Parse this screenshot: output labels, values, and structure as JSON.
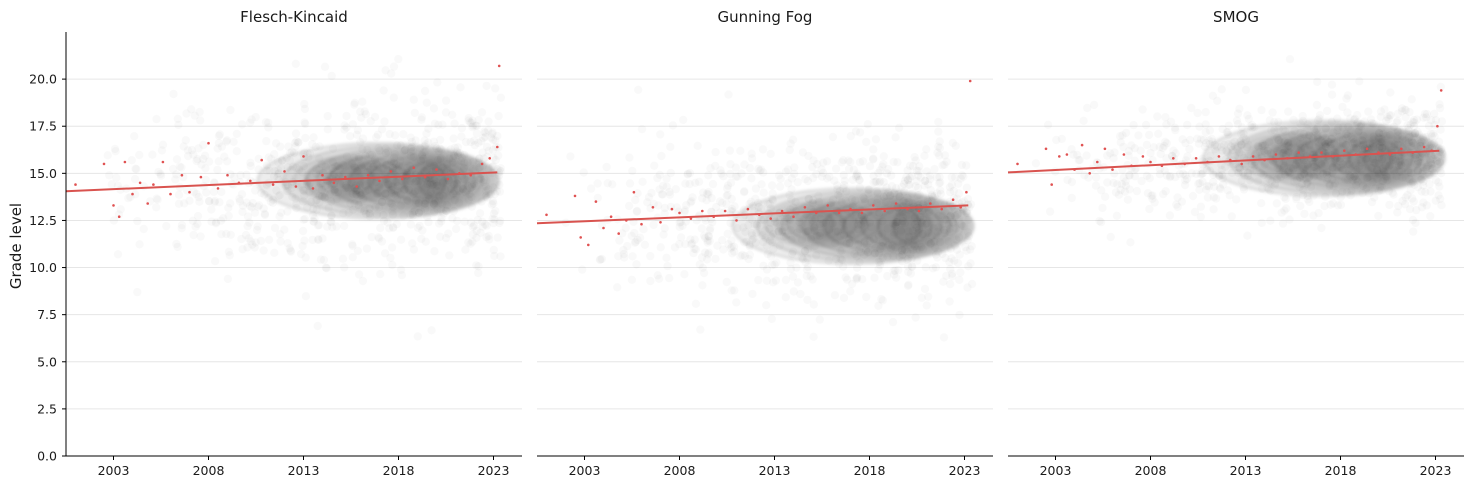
{
  "figure": {
    "ylabel": "Grade level"
  },
  "chart_data": [
    {
      "type": "scatter",
      "title": "Flesch-Kincaid",
      "xlabel": "",
      "ylabel": "Grade level",
      "xlim": [
        2000.5,
        2024.5
      ],
      "ylim": [
        0,
        22.5
      ],
      "xticks": [
        "2003",
        "2008",
        "2013",
        "2018",
        "2023"
      ],
      "yticks": [
        "0.0",
        "2.5",
        "5.0",
        "7.5",
        "10.0",
        "12.5",
        "15.0",
        "17.5",
        "20.0"
      ],
      "grid": "horizontal",
      "trend": {
        "x": [
          2000.5,
          2023.2
        ],
        "y": [
          14.05,
          15.05
        ]
      },
      "density_center": {
        "x": 2019.8,
        "y": 14.6
      },
      "monthly_means": [
        {
          "x": 2001.0,
          "y": 14.4
        },
        {
          "x": 2002.5,
          "y": 15.5
        },
        {
          "x": 2003.0,
          "y": 13.3
        },
        {
          "x": 2003.3,
          "y": 12.7
        },
        {
          "x": 2003.6,
          "y": 15.6
        },
        {
          "x": 2004.0,
          "y": 13.9
        },
        {
          "x": 2004.4,
          "y": 14.5
        },
        {
          "x": 2004.8,
          "y": 13.4
        },
        {
          "x": 2005.1,
          "y": 14.4
        },
        {
          "x": 2005.6,
          "y": 15.6
        },
        {
          "x": 2006.0,
          "y": 13.9
        },
        {
          "x": 2006.6,
          "y": 14.9
        },
        {
          "x": 2007.0,
          "y": 14.0
        },
        {
          "x": 2007.6,
          "y": 14.8
        },
        {
          "x": 2008.0,
          "y": 16.6
        },
        {
          "x": 2008.5,
          "y": 14.2
        },
        {
          "x": 2009.0,
          "y": 14.9
        },
        {
          "x": 2009.6,
          "y": 14.5
        },
        {
          "x": 2010.2,
          "y": 14.6
        },
        {
          "x": 2010.8,
          "y": 15.7
        },
        {
          "x": 2011.4,
          "y": 14.4
        },
        {
          "x": 2012.0,
          "y": 15.1
        },
        {
          "x": 2012.6,
          "y": 14.3
        },
        {
          "x": 2013.0,
          "y": 15.9
        },
        {
          "x": 2013.5,
          "y": 14.2
        },
        {
          "x": 2014.0,
          "y": 14.9
        },
        {
          "x": 2014.6,
          "y": 14.5
        },
        {
          "x": 2015.2,
          "y": 14.8
        },
        {
          "x": 2015.8,
          "y": 14.3
        },
        {
          "x": 2016.4,
          "y": 14.9
        },
        {
          "x": 2017.0,
          "y": 14.6
        },
        {
          "x": 2017.6,
          "y": 15.1
        },
        {
          "x": 2018.2,
          "y": 14.7
        },
        {
          "x": 2018.8,
          "y": 15.3
        },
        {
          "x": 2019.4,
          "y": 14.8
        },
        {
          "x": 2020.0,
          "y": 15.2
        },
        {
          "x": 2020.6,
          "y": 14.7
        },
        {
          "x": 2021.2,
          "y": 15.0
        },
        {
          "x": 2021.8,
          "y": 14.9
        },
        {
          "x": 2022.4,
          "y": 15.5
        },
        {
          "x": 2022.8,
          "y": 15.8
        },
        {
          "x": 2023.2,
          "y": 16.4
        },
        {
          "x": 2023.3,
          "y": 20.7
        }
      ]
    },
    {
      "type": "scatter",
      "title": "Gunning Fog",
      "xlabel": "",
      "ylabel": "",
      "xlim": [
        2000.5,
        2024.5
      ],
      "ylim": [
        0,
        22.5
      ],
      "xticks": [
        "2003",
        "2008",
        "2013",
        "2018",
        "2023"
      ],
      "yticks": [
        "0.0",
        "2.5",
        "5.0",
        "7.5",
        "10.0",
        "12.5",
        "15.0",
        "17.5",
        "20.0"
      ],
      "grid": "horizontal",
      "trend": {
        "x": [
          2000.5,
          2023.2
        ],
        "y": [
          12.35,
          13.3
        ]
      },
      "density_center": {
        "x": 2020.0,
        "y": 12.2
      },
      "monthly_means": [
        {
          "x": 2001.0,
          "y": 12.8
        },
        {
          "x": 2002.5,
          "y": 13.8
        },
        {
          "x": 2002.8,
          "y": 11.6
        },
        {
          "x": 2003.2,
          "y": 11.2
        },
        {
          "x": 2003.6,
          "y": 13.5
        },
        {
          "x": 2004.0,
          "y": 12.1
        },
        {
          "x": 2004.4,
          "y": 12.7
        },
        {
          "x": 2004.8,
          "y": 11.8
        },
        {
          "x": 2005.2,
          "y": 12.5
        },
        {
          "x": 2005.6,
          "y": 14.0
        },
        {
          "x": 2006.0,
          "y": 12.3
        },
        {
          "x": 2006.6,
          "y": 13.2
        },
        {
          "x": 2007.0,
          "y": 12.4
        },
        {
          "x": 2007.6,
          "y": 13.1
        },
        {
          "x": 2008.0,
          "y": 12.9
        },
        {
          "x": 2008.6,
          "y": 12.6
        },
        {
          "x": 2009.2,
          "y": 13.0
        },
        {
          "x": 2009.8,
          "y": 12.7
        },
        {
          "x": 2010.4,
          "y": 13.0
        },
        {
          "x": 2011.0,
          "y": 12.5
        },
        {
          "x": 2011.6,
          "y": 13.1
        },
        {
          "x": 2012.2,
          "y": 12.8
        },
        {
          "x": 2012.8,
          "y": 12.6
        },
        {
          "x": 2013.4,
          "y": 13.0
        },
        {
          "x": 2014.0,
          "y": 12.7
        },
        {
          "x": 2014.6,
          "y": 13.2
        },
        {
          "x": 2015.2,
          "y": 12.9
        },
        {
          "x": 2015.8,
          "y": 13.3
        },
        {
          "x": 2016.4,
          "y": 12.9
        },
        {
          "x": 2017.0,
          "y": 13.1
        },
        {
          "x": 2017.6,
          "y": 12.9
        },
        {
          "x": 2018.2,
          "y": 13.3
        },
        {
          "x": 2018.8,
          "y": 13.0
        },
        {
          "x": 2019.4,
          "y": 13.4
        },
        {
          "x": 2020.0,
          "y": 13.1
        },
        {
          "x": 2020.6,
          "y": 13.0
        },
        {
          "x": 2021.2,
          "y": 13.4
        },
        {
          "x": 2021.8,
          "y": 13.1
        },
        {
          "x": 2022.4,
          "y": 13.6
        },
        {
          "x": 2022.8,
          "y": 13.2
        },
        {
          "x": 2023.1,
          "y": 14.0
        },
        {
          "x": 2023.3,
          "y": 19.9
        }
      ]
    },
    {
      "type": "scatter",
      "title": "SMOG",
      "xlabel": "",
      "ylabel": "",
      "xlim": [
        2000.5,
        2024.5
      ],
      "ylim": [
        0,
        22.5
      ],
      "xticks": [
        "2003",
        "2008",
        "2013",
        "2018",
        "2023"
      ],
      "yticks": [
        "0.0",
        "2.5",
        "5.0",
        "7.5",
        "10.0",
        "12.5",
        "15.0",
        "17.5",
        "20.0"
      ],
      "grid": "horizontal",
      "trend": {
        "x": [
          2000.5,
          2023.2
        ],
        "y": [
          15.05,
          16.2
        ]
      },
      "density_center": {
        "x": 2020.0,
        "y": 15.8
      },
      "monthly_means": [
        {
          "x": 2001.0,
          "y": 15.5
        },
        {
          "x": 2002.5,
          "y": 16.3
        },
        {
          "x": 2002.8,
          "y": 14.4
        },
        {
          "x": 2003.2,
          "y": 15.9
        },
        {
          "x": 2003.6,
          "y": 16.0
        },
        {
          "x": 2004.0,
          "y": 15.2
        },
        {
          "x": 2004.4,
          "y": 16.5
        },
        {
          "x": 2004.8,
          "y": 15.0
        },
        {
          "x": 2005.2,
          "y": 15.6
        },
        {
          "x": 2005.6,
          "y": 16.3
        },
        {
          "x": 2006.0,
          "y": 15.2
        },
        {
          "x": 2006.6,
          "y": 16.0
        },
        {
          "x": 2007.0,
          "y": 15.4
        },
        {
          "x": 2007.6,
          "y": 15.9
        },
        {
          "x": 2008.0,
          "y": 15.6
        },
        {
          "x": 2008.6,
          "y": 15.4
        },
        {
          "x": 2009.2,
          "y": 15.8
        },
        {
          "x": 2009.8,
          "y": 15.5
        },
        {
          "x": 2010.4,
          "y": 15.8
        },
        {
          "x": 2011.0,
          "y": 15.6
        },
        {
          "x": 2011.6,
          "y": 15.9
        },
        {
          "x": 2012.2,
          "y": 15.7
        },
        {
          "x": 2012.8,
          "y": 15.5
        },
        {
          "x": 2013.4,
          "y": 15.9
        },
        {
          "x": 2014.0,
          "y": 15.7
        },
        {
          "x": 2014.6,
          "y": 16.0
        },
        {
          "x": 2015.2,
          "y": 15.8
        },
        {
          "x": 2015.8,
          "y": 16.1
        },
        {
          "x": 2016.4,
          "y": 15.9
        },
        {
          "x": 2017.0,
          "y": 16.1
        },
        {
          "x": 2017.6,
          "y": 15.9
        },
        {
          "x": 2018.2,
          "y": 16.2
        },
        {
          "x": 2018.8,
          "y": 16.0
        },
        {
          "x": 2019.4,
          "y": 16.3
        },
        {
          "x": 2020.0,
          "y": 16.1
        },
        {
          "x": 2020.6,
          "y": 16.0
        },
        {
          "x": 2021.2,
          "y": 16.3
        },
        {
          "x": 2021.8,
          "y": 16.1
        },
        {
          "x": 2022.4,
          "y": 16.4
        },
        {
          "x": 2022.8,
          "y": 16.2
        },
        {
          "x": 2023.1,
          "y": 17.5
        },
        {
          "x": 2023.3,
          "y": 19.4
        }
      ]
    }
  ],
  "colors": {
    "mean_points": "#e05252",
    "trend_line": "#d9534f",
    "density": "#000000",
    "grid": "#e6e6e6",
    "axis": "#000000"
  }
}
